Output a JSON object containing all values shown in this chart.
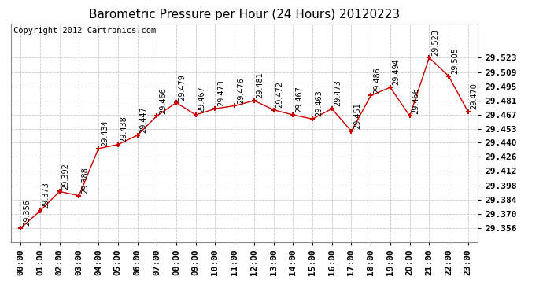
{
  "title": "Barometric Pressure per Hour (24 Hours) 20120223",
  "copyright": "Copyright 2012 Cartronics.com",
  "hours": [
    "00:00",
    "01:00",
    "02:00",
    "03:00",
    "04:00",
    "05:00",
    "06:00",
    "07:00",
    "08:00",
    "09:00",
    "10:00",
    "11:00",
    "12:00",
    "13:00",
    "14:00",
    "15:00",
    "16:00",
    "17:00",
    "18:00",
    "19:00",
    "20:00",
    "21:00",
    "22:00",
    "23:00"
  ],
  "values": [
    29.356,
    29.373,
    29.392,
    29.388,
    29.434,
    29.438,
    29.447,
    29.466,
    29.479,
    29.467,
    29.473,
    29.476,
    29.481,
    29.472,
    29.467,
    29.463,
    29.473,
    29.451,
    29.486,
    29.494,
    29.466,
    29.523,
    29.505,
    29.47
  ],
  "line_color": "#cc0000",
  "marker_color": "#cc0000",
  "bg_color": "#ffffff",
  "grid_color": "#c8c8c8",
  "ylim_min": 29.356,
  "ylim_max": 29.523,
  "ytick_start": 29.356,
  "ytick_step": 0.014,
  "yticks": [
    29.356,
    29.37,
    29.384,
    29.398,
    29.412,
    29.426,
    29.44,
    29.453,
    29.467,
    29.481,
    29.495,
    29.509,
    29.523
  ],
  "title_fontsize": 11,
  "label_fontsize": 8,
  "annotation_fontsize": 7,
  "copyright_fontsize": 7.5
}
